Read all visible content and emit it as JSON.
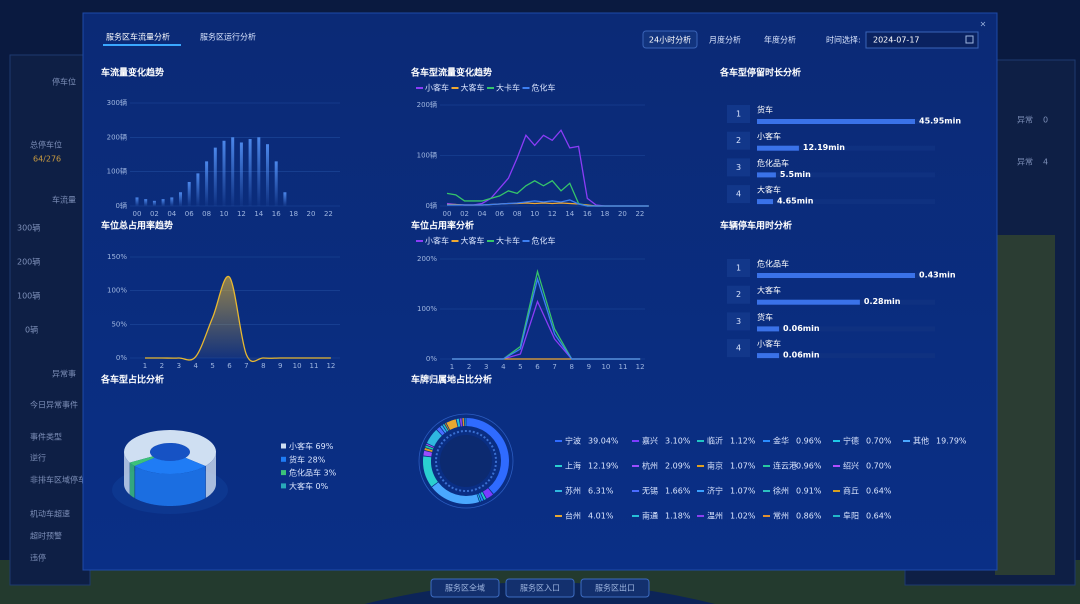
{
  "background": {
    "left_titles": [
      "停车位",
      "车流量",
      "异常事"
    ],
    "total_label": "总停车位",
    "total_value": "64/276",
    "axis_labels": [
      "300辆",
      "200辆",
      "100辆",
      "0辆"
    ],
    "events_tab": "今日异常事件",
    "event_header": "事件类型",
    "events": [
      "逆行",
      "非排车区域停车",
      "机动车超速",
      "超时预警",
      "违停"
    ],
    "alerts": [
      {
        "label": "异常",
        "value": 0
      },
      {
        "label": "异常",
        "value": 4
      }
    ],
    "nav": [
      "服务区全域",
      "服务区入口",
      "服务区出口"
    ]
  },
  "modal": {
    "tabs": [
      "服务区车流量分析",
      "服务区运行分析"
    ],
    "modes": [
      "24小时分析",
      "月度分析",
      "年度分析"
    ],
    "date_label": "时间选择:",
    "date": "2024-07-17",
    "close": "×"
  },
  "chart_data": [
    {
      "type": "bar",
      "title": "车流量变化趋势",
      "categories": [
        "00",
        null,
        "02",
        null,
        "04",
        null,
        "06",
        null,
        "08",
        null,
        "10",
        null,
        "12",
        null,
        "14",
        null,
        "16",
        null,
        "18",
        null,
        "20",
        null,
        "22",
        null
      ],
      "values": [
        25,
        20,
        15,
        20,
        25,
        40,
        70,
        95,
        130,
        170,
        190,
        200,
        185,
        195,
        200,
        180,
        130,
        40,
        0,
        0,
        0,
        0,
        0,
        0
      ],
      "color": "#3f7fe0",
      "ylim": [
        0,
        300
      ],
      "yticks": [
        {
          "value": 0,
          "label": "0辆"
        },
        {
          "value": 100,
          "label": "100辆"
        },
        {
          "value": 200,
          "label": "200辆"
        },
        {
          "value": 300,
          "label": "300辆"
        }
      ],
      "grid": true
    },
    {
      "type": "line",
      "title": "各车型流量变化趋势",
      "categories": [
        "00",
        null,
        "02",
        null,
        "04",
        null,
        "06",
        null,
        "08",
        null,
        "10",
        null,
        "12",
        null,
        "14",
        null,
        "16",
        null,
        "18",
        null,
        "20",
        null,
        "22",
        null
      ],
      "series": [
        {
          "name": "小客车",
          "color": "#8b3cf7",
          "values": [
            5,
            3,
            2,
            2,
            5,
            15,
            35,
            55,
            95,
            140,
            120,
            140,
            130,
            150,
            115,
            118,
            15,
            2,
            0,
            0,
            0,
            0,
            0,
            0
          ]
        },
        {
          "name": "大客车",
          "color": "#f0a830",
          "values": [
            3,
            3,
            2,
            2,
            2,
            3,
            4,
            5,
            5,
            6,
            5,
            6,
            5,
            6,
            5,
            4,
            2,
            0,
            0,
            0,
            0,
            0,
            0,
            0
          ]
        },
        {
          "name": "大卡车",
          "color": "#35c46a",
          "values": [
            25,
            22,
            10,
            10,
            10,
            15,
            20,
            30,
            25,
            40,
            50,
            40,
            50,
            30,
            45,
            5,
            0,
            0,
            0,
            0,
            0,
            0,
            0,
            0
          ]
        },
        {
          "name": "危化车",
          "color": "#3d7ff2",
          "values": [
            2,
            2,
            2,
            2,
            2,
            3,
            4,
            5,
            6,
            8,
            10,
            8,
            10,
            8,
            12,
            4,
            0,
            0,
            0,
            0,
            0,
            0,
            0,
            0
          ]
        }
      ],
      "ylim": [
        0,
        200
      ],
      "yticks": [
        {
          "value": 0,
          "label": "0辆"
        },
        {
          "value": 100,
          "label": "100辆"
        },
        {
          "value": 200,
          "label": "200辆"
        }
      ],
      "grid": true,
      "legend": "top"
    },
    {
      "type": "line",
      "title": "车位总占用率趋势",
      "categories": [
        "1",
        "2",
        "3",
        "4",
        "5",
        "6",
        "7",
        "8",
        "9",
        "10",
        "11",
        "12"
      ],
      "values": [
        0,
        0,
        0,
        2,
        60,
        120,
        5,
        0,
        0,
        0,
        0,
        0
      ],
      "color": "#e8b830",
      "area": true,
      "smooth": true,
      "ylim": [
        0,
        150
      ],
      "yticks": [
        {
          "value": 0,
          "label": "0%"
        },
        {
          "value": 50,
          "label": "50%"
        },
        {
          "value": 100,
          "label": "100%"
        },
        {
          "value": 150,
          "label": "150%"
        }
      ],
      "grid": true
    },
    {
      "type": "line",
      "title": "车位占用率分析",
      "categories": [
        "1",
        "2",
        "3",
        "4",
        "5",
        "6",
        "7",
        "8",
        "9",
        "10",
        "11",
        "12"
      ],
      "series": [
        {
          "name": "小客车",
          "color": "#8b3cf7",
          "values": [
            0,
            0,
            0,
            0,
            10,
            115,
            40,
            0,
            0,
            0,
            0,
            0
          ]
        },
        {
          "name": "大客车",
          "color": "#f0a830",
          "values": [
            0,
            0,
            0,
            0,
            0,
            0,
            0,
            0,
            0,
            0,
            0,
            0
          ]
        },
        {
          "name": "大卡车",
          "color": "#35c46a",
          "values": [
            0,
            0,
            0,
            0,
            25,
            175,
            60,
            0,
            0,
            0,
            0,
            0
          ]
        },
        {
          "name": "危化车",
          "color": "#3d7ff2",
          "values": [
            0,
            0,
            0,
            0,
            20,
            160,
            50,
            0,
            0,
            0,
            0,
            0
          ]
        }
      ],
      "ylim": [
        0,
        200
      ],
      "yticks": [
        {
          "value": 0,
          "label": "0%"
        },
        {
          "value": 100,
          "label": "100%"
        },
        {
          "value": 200,
          "label": "200%"
        }
      ],
      "grid": true,
      "legend": "top"
    },
    {
      "type": "rank",
      "title": "各车型停留时长分析",
      "ranks": [
        "1",
        "2",
        "3",
        "4"
      ],
      "categories": [
        "货车",
        "小客车",
        "危化品车",
        "大客车"
      ],
      "values": [
        45.95,
        12.19,
        5.5,
        4.65
      ],
      "value_labels": [
        "45.95min",
        "12.19min",
        "5.5min",
        "4.65min"
      ],
      "color": "#3a72e8"
    },
    {
      "type": "rank",
      "title": "车辆停车用时分析",
      "ranks": [
        "1",
        "2",
        "3",
        "4"
      ],
      "categories": [
        "危化品车",
        "大客车",
        "货车",
        "小客车"
      ],
      "values": [
        0.43,
        0.28,
        0.06,
        0.06
      ],
      "value_labels": [
        "0.43min",
        "0.28min",
        "0.06min",
        "0.06min"
      ],
      "color": "#3a72e8"
    },
    {
      "type": "pie3d",
      "title": "各车型占比分析",
      "categories": [
        "小客车",
        "货车",
        "危化品车",
        "大客车"
      ],
      "values": [
        69,
        28,
        3,
        0
      ],
      "value_labels": [
        "69%",
        "28%",
        "3%",
        "0%"
      ],
      "colors": [
        "#cfdff2",
        "#1f7cf5",
        "#3cc27a",
        "#2aa9b8"
      ]
    },
    {
      "type": "donut",
      "title": "车牌归属地占比分析",
      "categories": [
        "宁波",
        "嘉兴",
        "临沂",
        "金华",
        "宁德",
        "其他",
        "上海",
        "杭州",
        "南京",
        "连云港",
        "绍兴",
        "苏州",
        "无锡",
        "济宁",
        "徐州",
        "商丘",
        "台州",
        "南通",
        "温州",
        "常州",
        "阜阳"
      ],
      "values": [
        39.04,
        3.1,
        1.12,
        0.96,
        0.7,
        19.79,
        12.19,
        2.09,
        1.07,
        0.96,
        0.7,
        6.31,
        1.66,
        1.07,
        0.91,
        0.64,
        4.01,
        1.18,
        1.02,
        0.86,
        0.64
      ],
      "value_labels": [
        "39.04%",
        "3.10%",
        "1.12%",
        "0.96%",
        "0.70%",
        "19.79%",
        "12.19%",
        "2.09%",
        "1.07%",
        "0.96%",
        "0.70%",
        "6.31%",
        "1.66%",
        "1.07%",
        "0.91%",
        "0.64%",
        "4.01%",
        "1.18%",
        "1.02%",
        "0.86%",
        "0.64%"
      ],
      "colors": [
        "#2f6bff",
        "#7b3cff",
        "#21c4c4",
        "#2a8cff",
        "#1ec8e8",
        "#4aa8ff",
        "#2ad0d0",
        "#9b4dff",
        "#e0a020",
        "#27c9a0",
        "#b04dff",
        "#2fb8e0",
        "#4a6cff",
        "#3aa0ff",
        "#2cc0c0",
        "#d6a020",
        "#e8a830",
        "#26c0d8",
        "#8a40f0",
        "#e09030",
        "#22b8c8"
      ]
    }
  ]
}
